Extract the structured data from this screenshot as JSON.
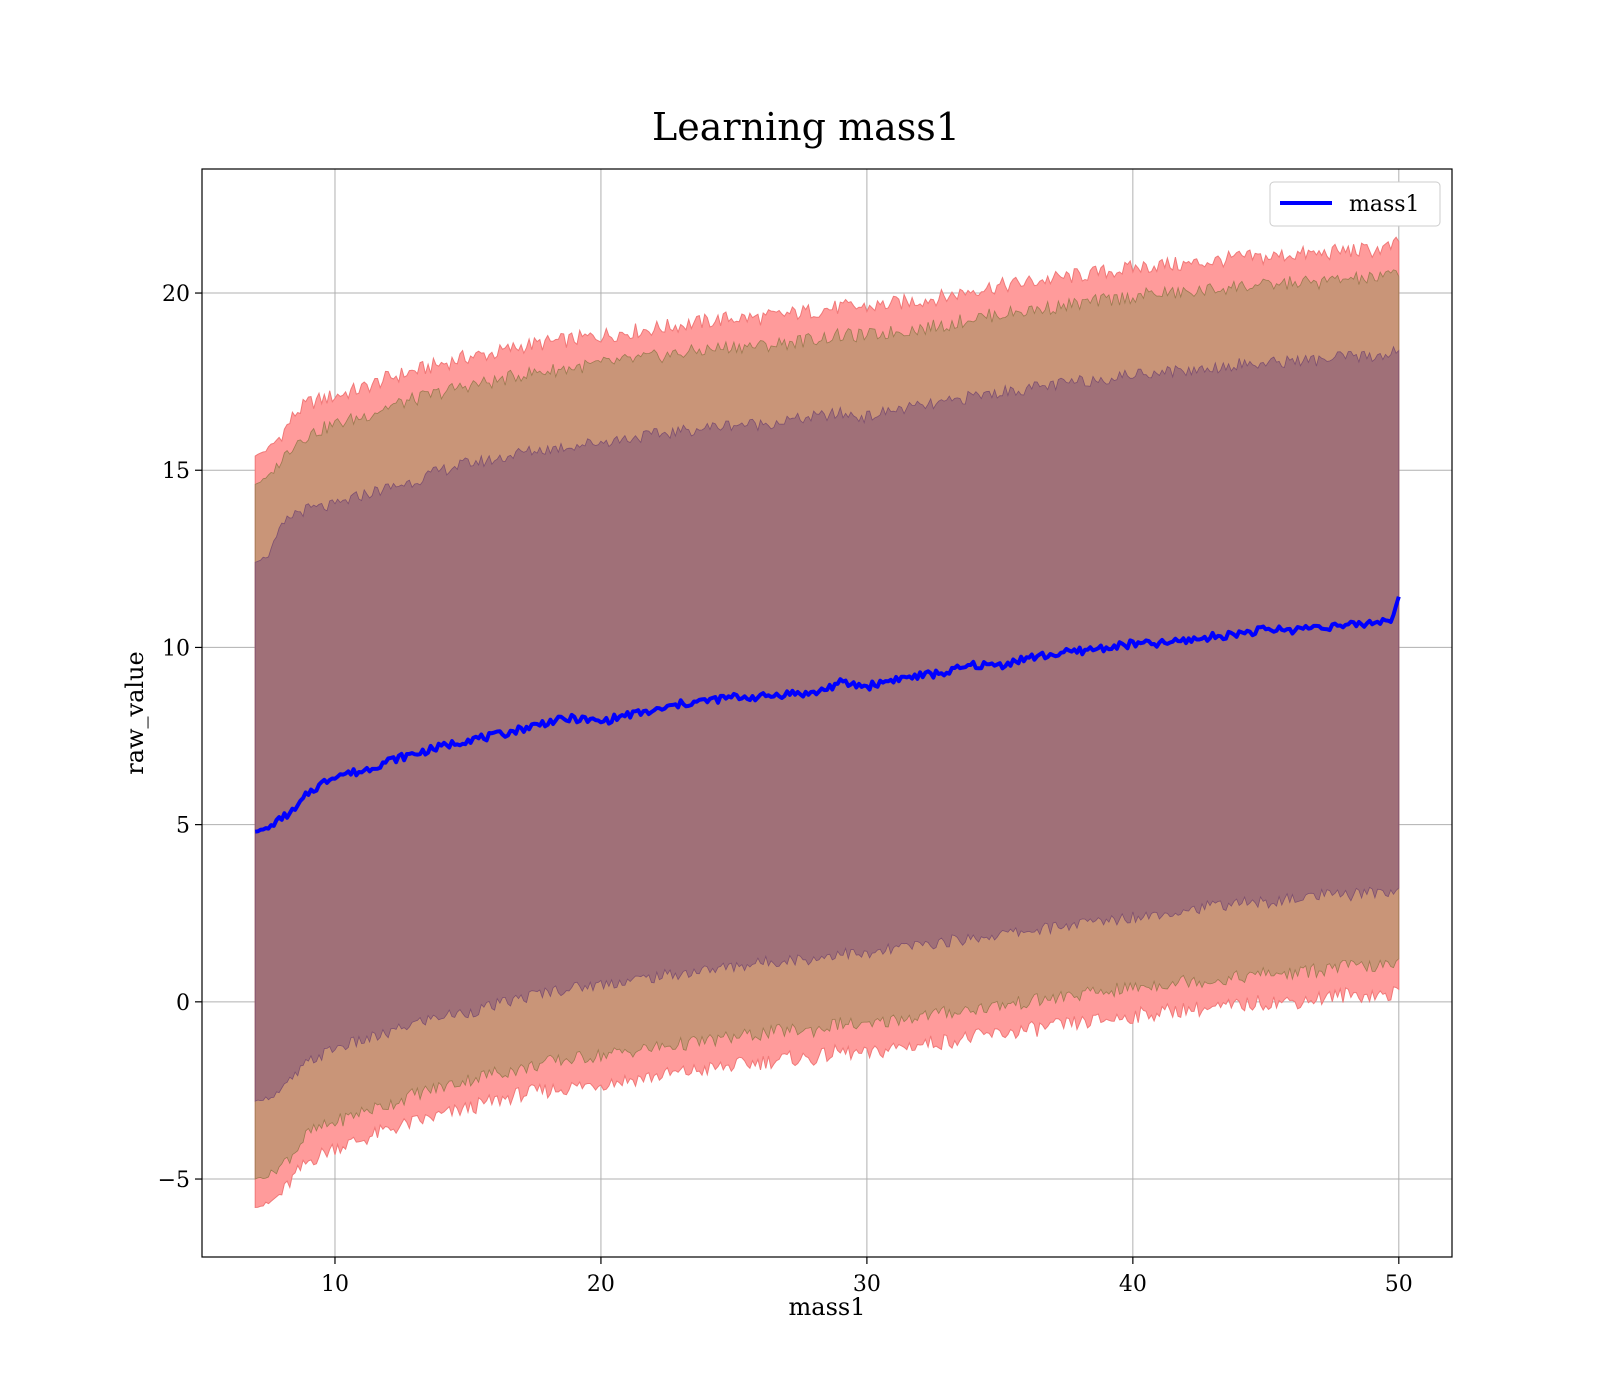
{
  "chart_data": {
    "type": "line",
    "title": "Learning mass1",
    "xlabel": "mass1",
    "ylabel": "raw_value",
    "xlim": [
      5,
      52
    ],
    "ylim": [
      -7.2,
      23.5
    ],
    "xticks": [
      10,
      20,
      30,
      40,
      50
    ],
    "yticks": [
      -5,
      0,
      5,
      10,
      15,
      20
    ],
    "xtick_labels": [
      "10",
      "20",
      "30",
      "40",
      "50"
    ],
    "ytick_labels": [
      "−5",
      "0",
      "5",
      "10",
      "15",
      "20"
    ],
    "grid": true,
    "legend": {
      "position": "top-right",
      "entries": [
        "mass1"
      ]
    },
    "colors": {
      "line": "#0000ff",
      "band_outer": "#ff9b9b",
      "band_outer_edge": "#f07878",
      "band_middle": "#c99578",
      "band_inner": "#a07078",
      "grid": "#b0b0b0"
    },
    "series": [
      {
        "name": "mass1",
        "x": [
          7.0,
          7.5,
          8.0,
          8.5,
          9.0,
          10.0,
          11.0,
          12.0,
          13.0,
          14.0,
          15.0,
          16.0,
          17.0,
          18.0,
          19.0,
          20.0,
          21.0,
          22.0,
          23.0,
          24.0,
          25.0,
          26.0,
          27.0,
          28.0,
          29.0,
          30.0,
          31.0,
          32.0,
          33.0,
          34.0,
          35.0,
          36.0,
          37.0,
          38.0,
          39.0,
          40.0,
          41.0,
          42.0,
          43.0,
          44.0,
          45.0,
          46.0,
          47.0,
          48.0,
          49.0,
          49.7,
          50.0
        ],
        "y": [
          4.8,
          4.9,
          5.2,
          5.4,
          5.9,
          6.4,
          6.5,
          6.8,
          7.0,
          7.2,
          7.4,
          7.5,
          7.7,
          7.9,
          8.0,
          7.9,
          8.1,
          8.2,
          8.4,
          8.5,
          8.6,
          8.6,
          8.7,
          8.7,
          9.0,
          8.9,
          9.1,
          9.2,
          9.3,
          9.5,
          9.5,
          9.7,
          9.8,
          9.9,
          10.0,
          10.1,
          10.1,
          10.2,
          10.3,
          10.4,
          10.5,
          10.5,
          10.6,
          10.6,
          10.7,
          10.8,
          11.4
        ],
        "band_inner_upper": [
          12.4,
          12.6,
          13.4,
          13.8,
          13.9,
          14.0,
          14.3,
          14.5,
          14.7,
          15.0,
          15.2,
          15.3,
          15.5,
          15.6,
          15.7,
          15.8,
          15.9,
          16.0,
          16.1,
          16.2,
          16.3,
          16.3,
          16.4,
          16.5,
          16.6,
          16.5,
          16.7,
          16.8,
          16.9,
          17.1,
          17.2,
          17.3,
          17.4,
          17.5,
          17.6,
          17.7,
          17.8,
          17.8,
          17.9,
          18.0,
          18.0,
          18.1,
          18.1,
          18.2,
          18.2,
          18.3,
          18.4
        ],
        "band_inner_lower": [
          -2.8,
          -2.7,
          -2.5,
          -2.1,
          -1.7,
          -1.3,
          -1.1,
          -0.9,
          -0.6,
          -0.4,
          -0.3,
          -0.1,
          0.1,
          0.3,
          0.4,
          0.5,
          0.6,
          0.7,
          0.8,
          0.9,
          1.0,
          1.1,
          1.2,
          1.2,
          1.4,
          1.3,
          1.5,
          1.6,
          1.7,
          1.8,
          1.9,
          2.0,
          2.1,
          2.2,
          2.3,
          2.4,
          2.5,
          2.6,
          2.7,
          2.8,
          2.8,
          2.9,
          3.0,
          3.0,
          3.1,
          3.1,
          3.2
        ],
        "band_middle_upper": [
          14.6,
          14.8,
          15.3,
          15.8,
          16.0,
          16.3,
          16.5,
          16.8,
          17.0,
          17.2,
          17.4,
          17.5,
          17.7,
          17.8,
          17.9,
          18.0,
          18.1,
          18.2,
          18.3,
          18.4,
          18.5,
          18.5,
          18.6,
          18.7,
          18.8,
          18.8,
          18.9,
          19.0,
          19.1,
          19.3,
          19.4,
          19.5,
          19.6,
          19.7,
          19.8,
          19.9,
          20.0,
          20.0,
          20.1,
          20.2,
          20.2,
          20.3,
          20.3,
          20.4,
          20.4,
          20.5,
          20.6
        ],
        "band_middle_lower": [
          -5.0,
          -4.9,
          -4.6,
          -4.2,
          -3.7,
          -3.4,
          -3.1,
          -2.9,
          -2.6,
          -2.4,
          -2.2,
          -2.0,
          -1.9,
          -1.7,
          -1.6,
          -1.5,
          -1.4,
          -1.3,
          -1.2,
          -1.1,
          -1.0,
          -0.9,
          -0.8,
          -0.8,
          -0.6,
          -0.7,
          -0.5,
          -0.4,
          -0.3,
          -0.2,
          -0.1,
          0.0,
          0.1,
          0.2,
          0.3,
          0.4,
          0.5,
          0.6,
          0.6,
          0.7,
          0.8,
          0.8,
          0.9,
          1.0,
          1.0,
          1.0,
          1.1
        ],
        "band_outer_upper": [
          15.4,
          15.6,
          16.0,
          16.6,
          16.9,
          17.1,
          17.3,
          17.6,
          17.8,
          18.0,
          18.2,
          18.3,
          18.5,
          18.6,
          18.7,
          18.8,
          18.9,
          19.0,
          19.1,
          19.2,
          19.3,
          19.3,
          19.4,
          19.5,
          19.6,
          19.6,
          19.7,
          19.8,
          19.9,
          20.1,
          20.2,
          20.3,
          20.4,
          20.5,
          20.6,
          20.7,
          20.8,
          20.8,
          20.9,
          21.0,
          21.0,
          21.1,
          21.1,
          21.2,
          21.2,
          21.3,
          21.4
        ],
        "band_outer_lower": [
          -5.8,
          -5.7,
          -5.4,
          -4.9,
          -4.5,
          -4.1,
          -3.9,
          -3.6,
          -3.4,
          -3.2,
          -3.0,
          -2.8,
          -2.6,
          -2.5,
          -2.4,
          -2.3,
          -2.2,
          -2.1,
          -2.0,
          -1.9,
          -1.8,
          -1.7,
          -1.6,
          -1.6,
          -1.4,
          -1.5,
          -1.3,
          -1.2,
          -1.1,
          -1.0,
          -0.9,
          -0.8,
          -0.7,
          -0.6,
          -0.5,
          -0.4,
          -0.3,
          -0.2,
          -0.2,
          -0.1,
          0.0,
          0.0,
          0.1,
          0.2,
          0.2,
          0.2,
          0.3
        ]
      }
    ]
  }
}
